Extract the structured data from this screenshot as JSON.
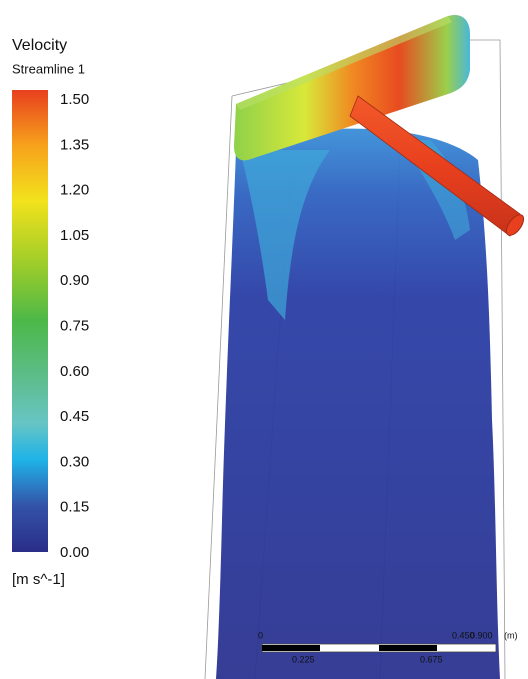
{
  "legend": {
    "title": "Velocity",
    "subtitle": "Streamline 1",
    "ticks": [
      "1.50",
      "1.35",
      "1.20",
      "1.05",
      "0.90",
      "0.75",
      "0.60",
      "0.45",
      "0.30",
      "0.15",
      "0.00"
    ],
    "unit": "[m s^-1]"
  },
  "scale_bar": {
    "top_labels": [
      "0",
      "0.450",
      "0.900",
      "(m)"
    ],
    "bottom_labels": [
      "0.225",
      "0.675"
    ]
  }
}
